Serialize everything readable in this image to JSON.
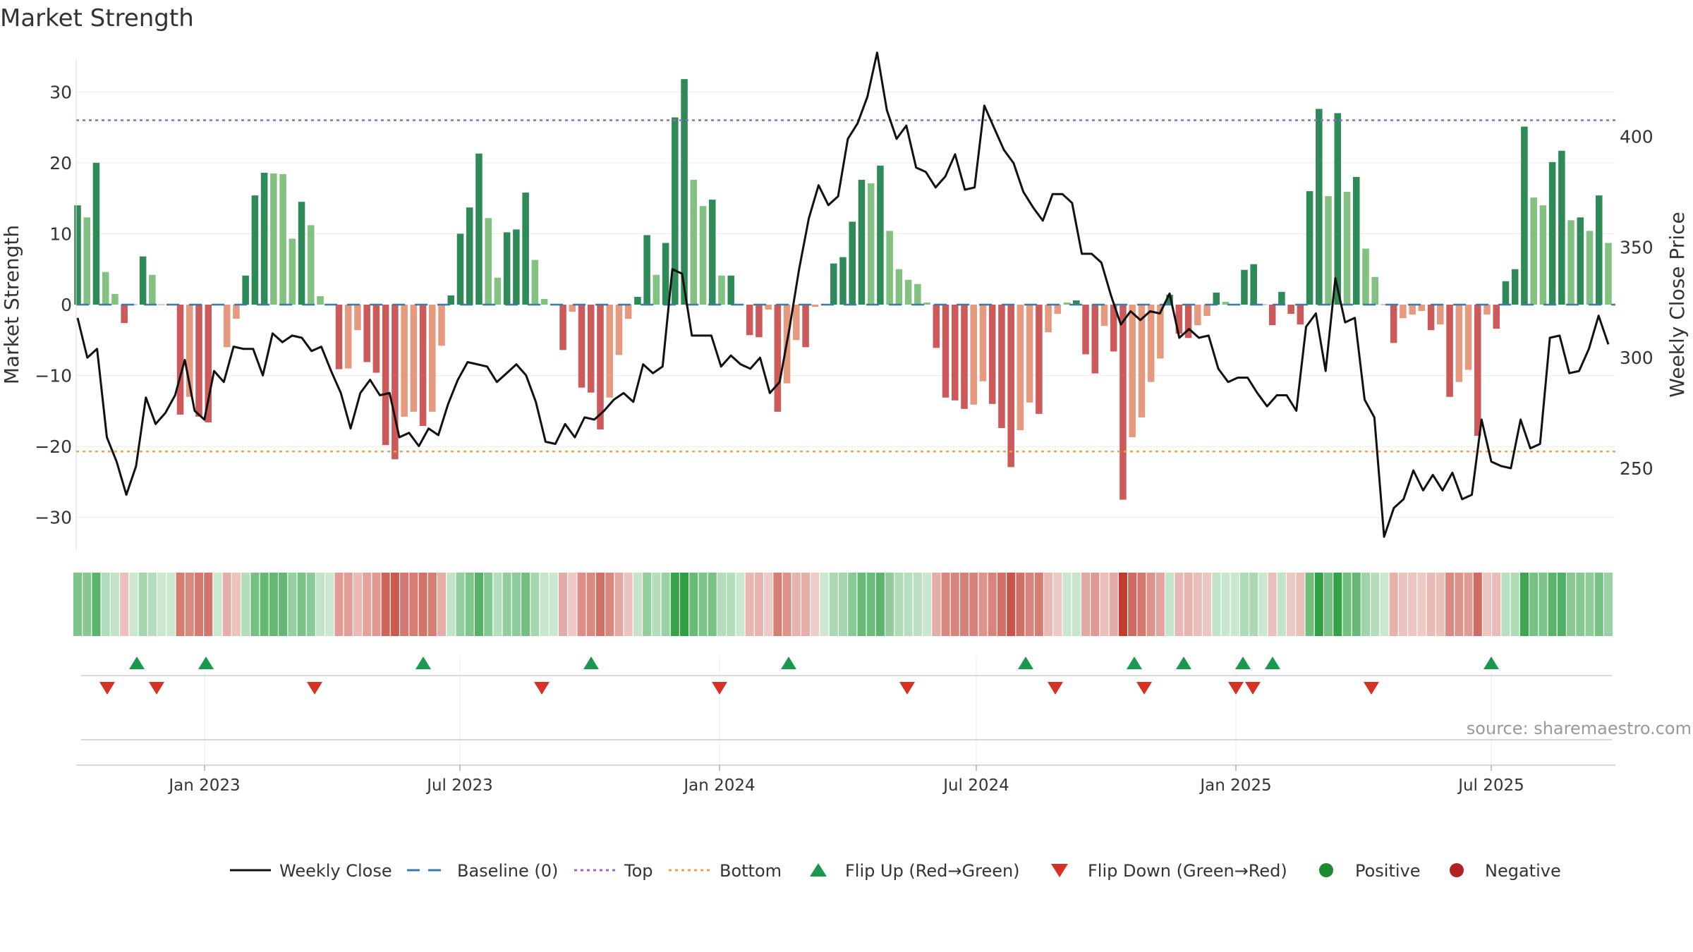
{
  "chart_data": {
    "type": "bar",
    "title": "Market Strength",
    "source": "source: sharemaestro.com",
    "ylabel_left": "Market Strength",
    "ylabel_right": "Weekly Close Price",
    "ylim_left": [
      -34.6,
      34.6
    ],
    "ylim_right": [
      213,
      435
    ],
    "yticks_left": [
      30,
      20,
      10,
      0,
      -10,
      -20,
      -30
    ],
    "ytick_labels_left": [
      "30",
      "20",
      "10",
      "0",
      "−10",
      "−20",
      "−30"
    ],
    "yticks_right": [
      400,
      350,
      300,
      250
    ],
    "ytick_labels_right": [
      "400",
      "350",
      "300",
      "250"
    ],
    "x_start": "2022-10-03",
    "x_end": "2025-09-22",
    "x_ticks": [
      {
        "date": "2023-01-01",
        "label": "Jan 2023"
      },
      {
        "date": "2023-07-01",
        "label": "Jul 2023"
      },
      {
        "date": "2024-01-01",
        "label": "Jan 2024"
      },
      {
        "date": "2024-07-01",
        "label": "Jul 2024"
      },
      {
        "date": "2025-01-01",
        "label": "Jan 2025"
      },
      {
        "date": "2025-07-01",
        "label": "Jul 2025"
      }
    ],
    "top_level": 26,
    "bottom_level": -20.7,
    "strength_values": [
      14,
      12.3,
      20,
      4.6,
      1.5,
      -2.6,
      0,
      6.8,
      4.2,
      0,
      0,
      -15.5,
      -13,
      -15.8,
      -16.6,
      0,
      -6,
      -2,
      4.1,
      15.4,
      18.6,
      18.5,
      18.4,
      9.3,
      14.5,
      11.2,
      1.2,
      0,
      -9.1,
      -9,
      -3.6,
      -8.1,
      -9.6,
      -19.8,
      -21.8,
      -15.8,
      -15.1,
      -17.1,
      -15.1,
      -5.8,
      1.3,
      10,
      13.7,
      21.3,
      12.2,
      3.8,
      10.2,
      10.6,
      15.8,
      6.3,
      0.8,
      0,
      -6.4,
      -1,
      -11.7,
      -12.4,
      -17.6,
      -13.1,
      -7.1,
      -2,
      1.1,
      9.8,
      4.2,
      8.7,
      26.4,
      31.8,
      17.6,
      13.9,
      14.8,
      4.1,
      4.1,
      0,
      -4.3,
      -4.6,
      -0.7,
      -15.1,
      -11.1,
      -5,
      -6,
      -0.3,
      0,
      5.8,
      6.7,
      11.7,
      17.6,
      17.1,
      19.6,
      10.4,
      5,
      3.5,
      2.9,
      0.3,
      -6.1,
      -13.1,
      -13.5,
      -14.7,
      -14.1,
      -10.8,
      -14,
      -17.4,
      -22.9,
      -17.7,
      -13.8,
      -15.4,
      -3.9,
      -1.3,
      0.3,
      0.6,
      -7,
      -9.7,
      -3,
      -6.6,
      -27.5,
      -18.7,
      -15.9,
      -10.9,
      -7.6,
      1.4,
      -4.1,
      -4.7,
      -2.9,
      -1.6,
      1.7,
      0.4,
      0,
      4.9,
      5.7,
      0,
      -2.9,
      1.8,
      -1.3,
      -2.8,
      16,
      27.6,
      15.3,
      27,
      15.9,
      18,
      7.9,
      3.9,
      0,
      -5.4,
      -1.9,
      -1.4,
      -0.9,
      -3.6,
      -2.8,
      -13,
      -10.9,
      -9.2,
      -18.5,
      -1.4,
      -3.4,
      3.3,
      5,
      25.1,
      15.1,
      14,
      20.1,
      21.7,
      11.9,
      12.3,
      10.4,
      15.4,
      8.7
    ],
    "bar_colors": [
      "#2e8b57",
      "#82c17f",
      "#2e8b57",
      "#82c17f",
      "#82c17f",
      "#cc5a5a",
      "#cccccc",
      "#2e8b57",
      "#82c17f",
      "#cccccc",
      "#cccccc",
      "#cc5a5a",
      "#e59a80",
      "#cc5a5a",
      "#cc5a5a",
      "#cccccc",
      "#e59a80",
      "#e59a80",
      "#2e8b57",
      "#2e8b57",
      "#2e8b57",
      "#82c17f",
      "#82c17f",
      "#82c17f",
      "#2e8b57",
      "#82c17f",
      "#82c17f",
      "#cccccc",
      "#cc5a5a",
      "#e59a80",
      "#e59a80",
      "#cc5a5a",
      "#cc5a5a",
      "#cc5a5a",
      "#cc5a5a",
      "#e59a80",
      "#e59a80",
      "#cc5a5a",
      "#e59a80",
      "#e59a80",
      "#2e8b57",
      "#2e8b57",
      "#2e8b57",
      "#2e8b57",
      "#82c17f",
      "#82c17f",
      "#2e8b57",
      "#2e8b57",
      "#2e8b57",
      "#82c17f",
      "#82c17f",
      "#cccccc",
      "#cc5a5a",
      "#e59a80",
      "#cc5a5a",
      "#cc5a5a",
      "#cc5a5a",
      "#e59a80",
      "#e59a80",
      "#e59a80",
      "#2e8b57",
      "#2e8b57",
      "#82c17f",
      "#2e8b57",
      "#2e8b57",
      "#2e8b57",
      "#82c17f",
      "#82c17f",
      "#2e8b57",
      "#82c17f",
      "#2e8b57",
      "#cccccc",
      "#cc5a5a",
      "#cc5a5a",
      "#e59a80",
      "#cc5a5a",
      "#e59a80",
      "#e59a80",
      "#cc5a5a",
      "#e59a80",
      "#cccccc",
      "#2e8b57",
      "#2e8b57",
      "#2e8b57",
      "#2e8b57",
      "#82c17f",
      "#2e8b57",
      "#82c17f",
      "#82c17f",
      "#82c17f",
      "#82c17f",
      "#82c17f",
      "#cc5a5a",
      "#cc5a5a",
      "#cc5a5a",
      "#cc5a5a",
      "#e59a80",
      "#e59a80",
      "#cc5a5a",
      "#cc5a5a",
      "#cc5a5a",
      "#e59a80",
      "#e59a80",
      "#cc5a5a",
      "#e59a80",
      "#e59a80",
      "#82c17f",
      "#2e8b57",
      "#cc5a5a",
      "#cc5a5a",
      "#e59a80",
      "#cc5a5a",
      "#cc5a5a",
      "#e59a80",
      "#e59a80",
      "#e59a80",
      "#e59a80",
      "#2e8b57",
      "#cc5a5a",
      "#cc5a5a",
      "#e59a80",
      "#e59a80",
      "#2e8b57",
      "#82c17f",
      "#cccccc",
      "#2e8b57",
      "#2e8b57",
      "#cccccc",
      "#cc5a5a",
      "#2e8b57",
      "#cc5a5a",
      "#cc5a5a",
      "#2e8b57",
      "#2e8b57",
      "#82c17f",
      "#2e8b57",
      "#82c17f",
      "#2e8b57",
      "#82c17f",
      "#82c17f",
      "#cccccc",
      "#cc5a5a",
      "#e59a80",
      "#e59a80",
      "#e59a80",
      "#cc5a5a",
      "#e59a80",
      "#cc5a5a",
      "#e59a80",
      "#e59a80",
      "#cc5a5a",
      "#e59a80",
      "#cc5a5a",
      "#2e8b57",
      "#2e8b57",
      "#2e8b57",
      "#82c17f",
      "#82c17f",
      "#2e8b57",
      "#2e8b57",
      "#82c17f",
      "#2e8b57",
      "#82c17f",
      "#2e8b57",
      "#82c17f"
    ],
    "weekly_close": [
      318,
      300,
      304,
      264,
      253,
      238,
      251,
      282,
      270,
      275,
      283,
      299,
      276,
      272,
      294,
      289,
      305,
      304,
      304,
      292,
      311,
      307,
      310,
      309,
      303,
      305,
      294,
      284,
      268,
      284,
      290,
      283,
      284,
      264,
      266,
      260,
      268,
      265,
      279,
      290,
      298,
      297,
      296,
      289,
      293,
      297,
      292,
      280,
      262,
      261,
      270,
      264,
      273,
      272,
      276,
      281,
      284,
      280,
      297,
      293,
      296,
      340,
      338,
      310,
      310,
      310,
      296,
      301,
      297,
      295,
      300,
      284,
      289,
      313,
      340,
      363,
      378,
      369,
      373,
      399,
      406,
      418,
      438,
      412,
      399,
      405,
      386,
      384,
      377,
      382,
      392,
      376,
      377,
      414,
      404,
      394,
      388,
      375,
      368,
      362,
      374,
      374,
      370,
      347,
      347,
      343,
      328,
      315,
      321,
      317,
      321,
      320,
      329,
      309,
      313,
      309,
      310,
      295,
      289,
      291,
      291,
      284,
      278,
      283,
      283,
      276,
      314,
      320,
      294,
      336,
      316,
      318,
      281,
      273,
      219,
      232,
      236,
      249,
      240,
      247,
      240,
      248,
      236,
      238,
      272,
      253,
      251,
      250,
      272,
      259,
      261,
      309,
      310,
      293,
      294,
      304,
      319,
      306
    ],
    "flip_up": [
      "2022-11-14",
      "2023-01-02",
      "2023-06-05",
      "2023-10-02",
      "2024-02-19",
      "2024-08-05",
      "2024-10-21",
      "2024-11-25",
      "2025-01-06",
      "2025-01-27",
      "2025-07-01"
    ],
    "flip_down": [
      "2022-10-24",
      "2022-11-28",
      "2023-03-20",
      "2023-08-28",
      "2024-01-01",
      "2024-05-13",
      "2024-08-26",
      "2024-10-28",
      "2025-01-01",
      "2025-01-13",
      "2025-04-07"
    ],
    "legend": [
      "Weekly Close",
      "Baseline (0)",
      "Top",
      "Bottom",
      "Flip Up (Red→Green)",
      "Flip Down (Green→Red)",
      "Positive",
      "Negative"
    ],
    "colors": {
      "strong_green": "#2e8b57",
      "light_green": "#82c17f",
      "strong_red": "#cc5a5a",
      "light_red": "#e59a80",
      "neutral": "#cccccc",
      "top_line": "#9966cc",
      "bottom_line": "#f0a050",
      "baseline": "#3a78b0",
      "close_line": "#111111",
      "flip_up": "#1a9850",
      "flip_down": "#d73027",
      "positive": "#1e8b2e",
      "negative": "#b22222"
    }
  }
}
